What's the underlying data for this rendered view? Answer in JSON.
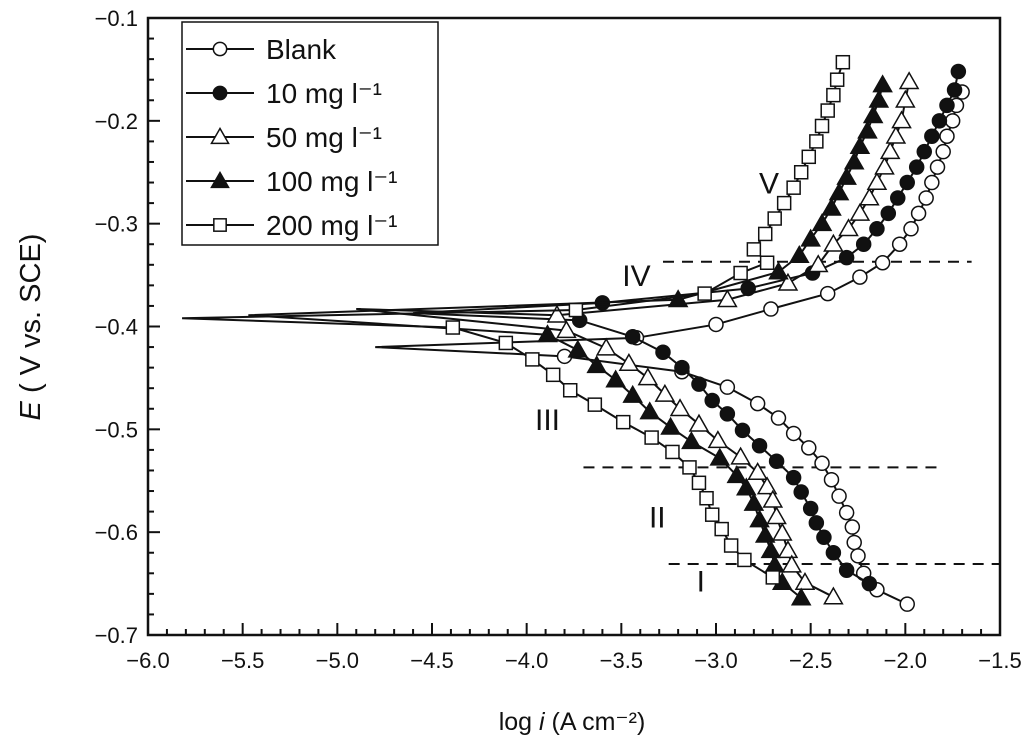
{
  "chart_data": {
    "type": "line",
    "xlabel": "log i (A cm⁻²)",
    "ylabel": "E ( V vs. SCE)",
    "xlim": [
      -6.0,
      -1.5
    ],
    "ylim": [
      -0.7,
      -0.1
    ],
    "xticks": [
      -6.0,
      -5.5,
      -5.0,
      -4.5,
      -4.0,
      -3.5,
      -3.0,
      -2.5,
      -2.0,
      -1.5
    ],
    "yticks": [
      -0.1,
      -0.2,
      -0.3,
      -0.4,
      -0.5,
      -0.6,
      -0.7
    ],
    "xtick_labels": [
      "−6.0",
      "−5.5",
      "−5.0",
      "−4.5",
      "−4.0",
      "−3.5",
      "−3.0",
      "−2.5",
      "−2.0",
      "−1.5"
    ],
    "ytick_labels": [
      "−0.1",
      "−0.2",
      "−0.3",
      "−0.4",
      "−0.5",
      "−0.6",
      "−0.7"
    ],
    "grid": false,
    "legend_position": "top-left",
    "series": [
      {
        "name": "Blank",
        "marker": "circle-open",
        "ecorr": -0.42,
        "min_log_i": -4.8,
        "anodic": [
          [
            -3.42,
            -0.411
          ],
          [
            -3.0,
            -0.398
          ],
          [
            -2.71,
            -0.383
          ],
          [
            -2.41,
            -0.368
          ],
          [
            -2.24,
            -0.352
          ],
          [
            -2.12,
            -0.338
          ],
          [
            -2.03,
            -0.32
          ],
          [
            -1.97,
            -0.305
          ],
          [
            -1.93,
            -0.29
          ],
          [
            -1.89,
            -0.275
          ],
          [
            -1.86,
            -0.26
          ],
          [
            -1.83,
            -0.245
          ],
          [
            -1.8,
            -0.23
          ],
          [
            -1.78,
            -0.215
          ],
          [
            -1.75,
            -0.2
          ],
          [
            -1.73,
            -0.185
          ],
          [
            -1.7,
            -0.172
          ]
        ],
        "cathodic": [
          [
            -3.8,
            -0.429
          ],
          [
            -3.18,
            -0.444
          ],
          [
            -2.94,
            -0.459
          ],
          [
            -2.78,
            -0.475
          ],
          [
            -2.67,
            -0.489
          ],
          [
            -2.59,
            -0.504
          ],
          [
            -2.51,
            -0.518
          ],
          [
            -2.44,
            -0.533
          ],
          [
            -2.39,
            -0.549
          ],
          [
            -2.35,
            -0.565
          ],
          [
            -2.31,
            -0.581
          ],
          [
            -2.28,
            -0.595
          ],
          [
            -2.27,
            -0.61
          ],
          [
            -2.25,
            -0.623
          ],
          [
            -2.22,
            -0.64
          ],
          [
            -2.15,
            -0.656
          ],
          [
            -1.99,
            -0.67
          ]
        ]
      },
      {
        "name": "10 mg l⁻¹",
        "marker": "circle-filled",
        "ecorr": -0.387,
        "min_log_i": -4.6,
        "anodic": [
          [
            -3.6,
            -0.377
          ],
          [
            -2.83,
            -0.363
          ],
          [
            -2.49,
            -0.348
          ],
          [
            -2.31,
            -0.333
          ],
          [
            -2.22,
            -0.32
          ],
          [
            -2.15,
            -0.305
          ],
          [
            -2.09,
            -0.29
          ],
          [
            -2.04,
            -0.275
          ],
          [
            -1.99,
            -0.26
          ],
          [
            -1.94,
            -0.245
          ],
          [
            -1.9,
            -0.23
          ],
          [
            -1.86,
            -0.215
          ],
          [
            -1.82,
            -0.2
          ],
          [
            -1.78,
            -0.185
          ],
          [
            -1.74,
            -0.17
          ],
          [
            -1.72,
            -0.152
          ]
        ],
        "cathodic": [
          [
            -3.72,
            -0.394
          ],
          [
            -3.44,
            -0.41
          ],
          [
            -3.28,
            -0.425
          ],
          [
            -3.18,
            -0.44
          ],
          [
            -3.09,
            -0.456
          ],
          [
            -3.02,
            -0.472
          ],
          [
            -2.94,
            -0.485
          ],
          [
            -2.86,
            -0.501
          ],
          [
            -2.77,
            -0.516
          ],
          [
            -2.68,
            -0.531
          ],
          [
            -2.59,
            -0.547
          ],
          [
            -2.55,
            -0.561
          ],
          [
            -2.5,
            -0.577
          ],
          [
            -2.47,
            -0.591
          ],
          [
            -2.43,
            -0.605
          ],
          [
            -2.38,
            -0.62
          ],
          [
            -2.31,
            -0.637
          ],
          [
            -2.19,
            -0.65
          ]
        ]
      },
      {
        "name": "50 mg l⁻¹",
        "marker": "triangle-open",
        "ecorr": -0.383,
        "min_log_i": -4.9,
        "anodic": [
          [
            -3.84,
            -0.389
          ],
          [
            -2.94,
            -0.374
          ],
          [
            -2.62,
            -0.358
          ],
          [
            -2.46,
            -0.34
          ],
          [
            -2.38,
            -0.32
          ],
          [
            -2.3,
            -0.305
          ],
          [
            -2.24,
            -0.29
          ],
          [
            -2.19,
            -0.275
          ],
          [
            -2.15,
            -0.26
          ],
          [
            -2.11,
            -0.245
          ],
          [
            -2.08,
            -0.23
          ],
          [
            -2.05,
            -0.215
          ],
          [
            -2.02,
            -0.2
          ],
          [
            -2.0,
            -0.18
          ],
          [
            -1.98,
            -0.162
          ]
        ],
        "cathodic": [
          [
            -3.79,
            -0.404
          ],
          [
            -3.58,
            -0.421
          ],
          [
            -3.46,
            -0.436
          ],
          [
            -3.36,
            -0.45
          ],
          [
            -3.27,
            -0.466
          ],
          [
            -3.19,
            -0.48
          ],
          [
            -3.09,
            -0.495
          ],
          [
            -2.99,
            -0.511
          ],
          [
            -2.87,
            -0.527
          ],
          [
            -2.78,
            -0.542
          ],
          [
            -2.73,
            -0.556
          ],
          [
            -2.7,
            -0.569
          ],
          [
            -2.68,
            -0.585
          ],
          [
            -2.65,
            -0.601
          ],
          [
            -2.62,
            -0.618
          ],
          [
            -2.6,
            -0.632
          ],
          [
            -2.53,
            -0.649
          ],
          [
            -2.38,
            -0.663
          ]
        ]
      },
      {
        "name": "100 mg l⁻¹",
        "marker": "triangle-filled",
        "ecorr": -0.389,
        "min_log_i": -5.47,
        "anodic": [
          [
            -3.2,
            -0.374
          ],
          [
            -2.67,
            -0.347
          ],
          [
            -2.56,
            -0.331
          ],
          [
            -2.5,
            -0.315
          ],
          [
            -2.44,
            -0.3
          ],
          [
            -2.39,
            -0.285
          ],
          [
            -2.35,
            -0.27
          ],
          [
            -2.31,
            -0.255
          ],
          [
            -2.27,
            -0.24
          ],
          [
            -2.24,
            -0.225
          ],
          [
            -2.2,
            -0.21
          ],
          [
            -2.17,
            -0.195
          ],
          [
            -2.14,
            -0.18
          ],
          [
            -2.12,
            -0.165
          ]
        ],
        "cathodic": [
          [
            -3.89,
            -0.408
          ],
          [
            -3.73,
            -0.423
          ],
          [
            -3.63,
            -0.438
          ],
          [
            -3.53,
            -0.452
          ],
          [
            -3.44,
            -0.467
          ],
          [
            -3.35,
            -0.483
          ],
          [
            -3.24,
            -0.498
          ],
          [
            -3.13,
            -0.512
          ],
          [
            -2.98,
            -0.528
          ],
          [
            -2.89,
            -0.545
          ],
          [
            -2.84,
            -0.557
          ],
          [
            -2.8,
            -0.572
          ],
          [
            -2.77,
            -0.588
          ],
          [
            -2.74,
            -0.603
          ],
          [
            -2.71,
            -0.618
          ],
          [
            -2.69,
            -0.632
          ],
          [
            -2.65,
            -0.649
          ],
          [
            -2.55,
            -0.664
          ]
        ]
      },
      {
        "name": "200 mg l⁻¹",
        "marker": "square-open",
        "ecorr": -0.392,
        "min_log_i": -5.82,
        "anodic": [
          [
            -3.74,
            -0.384
          ],
          [
            -3.06,
            -0.368
          ],
          [
            -2.87,
            -0.348
          ],
          [
            -2.73,
            -0.338
          ],
          [
            -2.8,
            -0.325
          ],
          [
            -2.74,
            -0.31
          ],
          [
            -2.69,
            -0.295
          ],
          [
            -2.64,
            -0.28
          ],
          [
            -2.59,
            -0.265
          ],
          [
            -2.55,
            -0.25
          ],
          [
            -2.51,
            -0.235
          ],
          [
            -2.47,
            -0.22
          ],
          [
            -2.44,
            -0.205
          ],
          [
            -2.41,
            -0.19
          ],
          [
            -2.38,
            -0.175
          ],
          [
            -2.36,
            -0.16
          ],
          [
            -2.33,
            -0.143
          ]
        ],
        "cathodic": [
          [
            -4.39,
            -0.401
          ],
          [
            -4.11,
            -0.416
          ],
          [
            -3.97,
            -0.432
          ],
          [
            -3.86,
            -0.447
          ],
          [
            -3.77,
            -0.462
          ],
          [
            -3.64,
            -0.476
          ],
          [
            -3.49,
            -0.493
          ],
          [
            -3.34,
            -0.508
          ],
          [
            -3.23,
            -0.522
          ],
          [
            -3.14,
            -0.537
          ],
          [
            -3.09,
            -0.552
          ],
          [
            -3.05,
            -0.567
          ],
          [
            -3.02,
            -0.583
          ],
          [
            -2.97,
            -0.597
          ],
          [
            -2.92,
            -0.613
          ],
          [
            -2.85,
            -0.627
          ],
          [
            -2.7,
            -0.644
          ]
        ]
      }
    ],
    "reference_lines": [
      {
        "y": -0.337,
        "x": [
          -3.28,
          -1.65
        ],
        "style": "dashed"
      },
      {
        "y": -0.537,
        "x": [
          -3.7,
          -1.8
        ],
        "style": "dashed"
      },
      {
        "y": -0.631,
        "x": [
          -3.25,
          -1.5
        ],
        "style": "dashed"
      }
    ],
    "annotations": [
      {
        "text": "V",
        "x": -2.72,
        "y": -0.26
      },
      {
        "text": "IV",
        "x": -3.42,
        "y": -0.35
      },
      {
        "text": "III",
        "x": -3.89,
        "y": -0.49
      },
      {
        "text": "II",
        "x": -3.31,
        "y": -0.585
      },
      {
        "text": "I",
        "x": -3.08,
        "y": -0.647
      }
    ]
  }
}
